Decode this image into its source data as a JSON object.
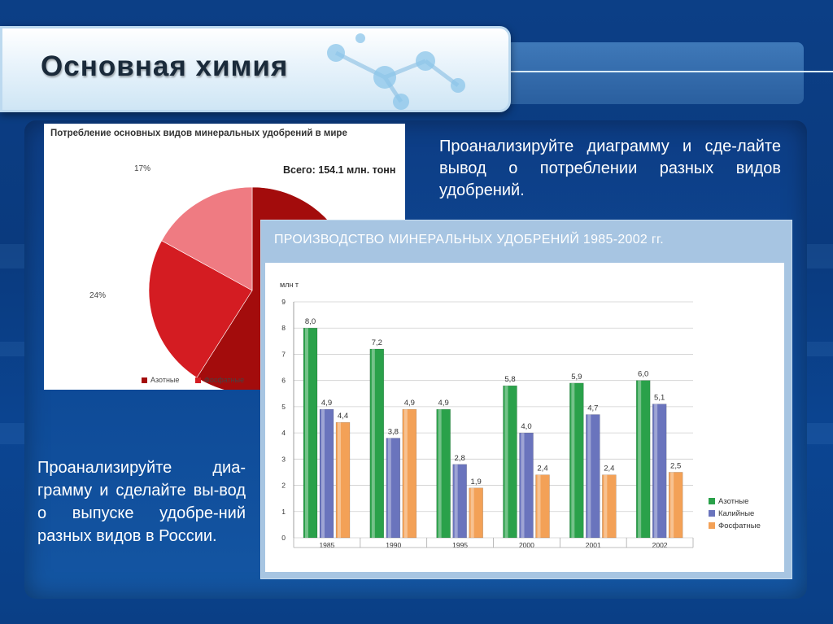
{
  "slide": {
    "title": "Основная химия",
    "text_top": "Проанализируйте диаграмму и сде-лайте вывод о потреблении разных видов удобрений.",
    "text_bottom": "Проанализируйте диа-грамму и сделайте вы-вод о выпуске удобре-ний разных видов в России."
  },
  "colors": {
    "pie_dark": "#a30c0c",
    "pie_mid": "#d41c22",
    "pie_light": "#ef7b82",
    "nitrogen": "#2aa14a",
    "potash": "#6a74bd",
    "phosphate": "#f3a157"
  },
  "chart_data": [
    {
      "type": "pie",
      "title": "Потребление основных видов минеральных удобрений в мире",
      "total_label": "Всего: 154.1 млн. тонн",
      "slices": [
        {
          "name": "Азотные",
          "value": 59,
          "color": "#a30c0c"
        },
        {
          "name": "Фосфатные",
          "value": 24,
          "label": "24%",
          "color": "#d41c22"
        },
        {
          "name": "",
          "value": 17,
          "label": "17%",
          "color": "#ef7b82"
        }
      ],
      "legend": [
        "Азотные",
        "Фосфатные"
      ]
    },
    {
      "type": "bar",
      "title": "ПРОИЗВОДСТВО МИНЕРАЛЬНЫХ УДОБРЕНИЙ 1985-2002 гг.",
      "ylabel": "млн т",
      "ylim": [
        0,
        9
      ],
      "yticks": [
        "0",
        "1",
        "2",
        "3",
        "4",
        "5",
        "6",
        "7",
        "8",
        "9"
      ],
      "categories": [
        "1985",
        "1990",
        "1995",
        "2000",
        "2001",
        "2002"
      ],
      "series": [
        {
          "name": "Азотные",
          "values": [
            8.0,
            7.2,
            4.9,
            5.8,
            5.9,
            6.0
          ],
          "labels": [
            "8,0",
            "7,2",
            "4,9",
            "5,8",
            "5,9",
            "6,0"
          ],
          "color": "#2aa14a"
        },
        {
          "name": "Калийные",
          "values": [
            4.9,
            3.8,
            2.8,
            4.0,
            4.7,
            5.1
          ],
          "labels": [
            "4,9",
            "3,8",
            "2,8",
            "4,0",
            "4,7",
            "5,1"
          ],
          "color": "#6a74bd"
        },
        {
          "name": "Фосфатные",
          "values": [
            4.4,
            4.9,
            1.9,
            2.4,
            2.4,
            2.5
          ],
          "labels": [
            "4,4",
            "4,9",
            "1,9",
            "2,4",
            "2,4",
            "2,5"
          ],
          "color": "#f3a157"
        }
      ],
      "grid": true,
      "legend_position": "right"
    }
  ]
}
